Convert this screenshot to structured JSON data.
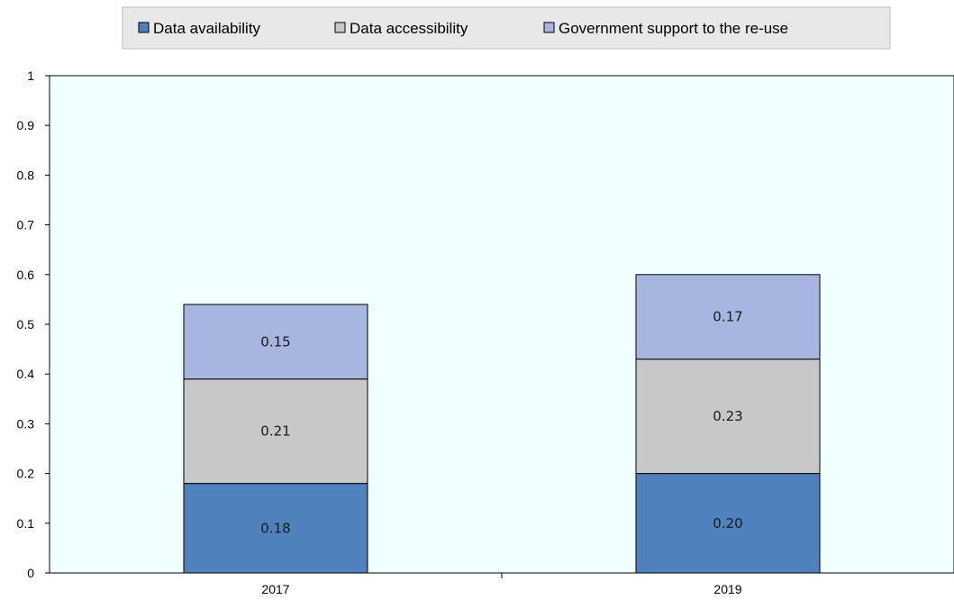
{
  "chart_data": {
    "type": "bar",
    "stacked": true,
    "categories": [
      "2017",
      "2019"
    ],
    "series": [
      {
        "name": "Data availability",
        "values": [
          0.18,
          0.2
        ],
        "labels": [
          "0.18",
          "0.20"
        ],
        "color": "#4f81bd"
      },
      {
        "name": "Data accessibility",
        "values": [
          0.21,
          0.23
        ],
        "labels": [
          "0.21",
          "0.23"
        ],
        "color": "#c8c8c8"
      },
      {
        "name": "Government support to the re-use",
        "values": [
          0.15,
          0.17
        ],
        "labels": [
          "0.15",
          "0.17"
        ],
        "color": "#a7b6e0"
      }
    ],
    "y_ticks": [
      "0",
      "0.1",
      "0.2",
      "0.3",
      "0.4",
      "0.5",
      "0.6",
      "0.7",
      "0.8",
      "0.9",
      "1"
    ],
    "ylim": [
      0,
      1
    ],
    "grid": false,
    "legend_position": "top-center",
    "plot_background": "#f0ffff",
    "title": "",
    "xlabel": "",
    "ylabel": ""
  }
}
